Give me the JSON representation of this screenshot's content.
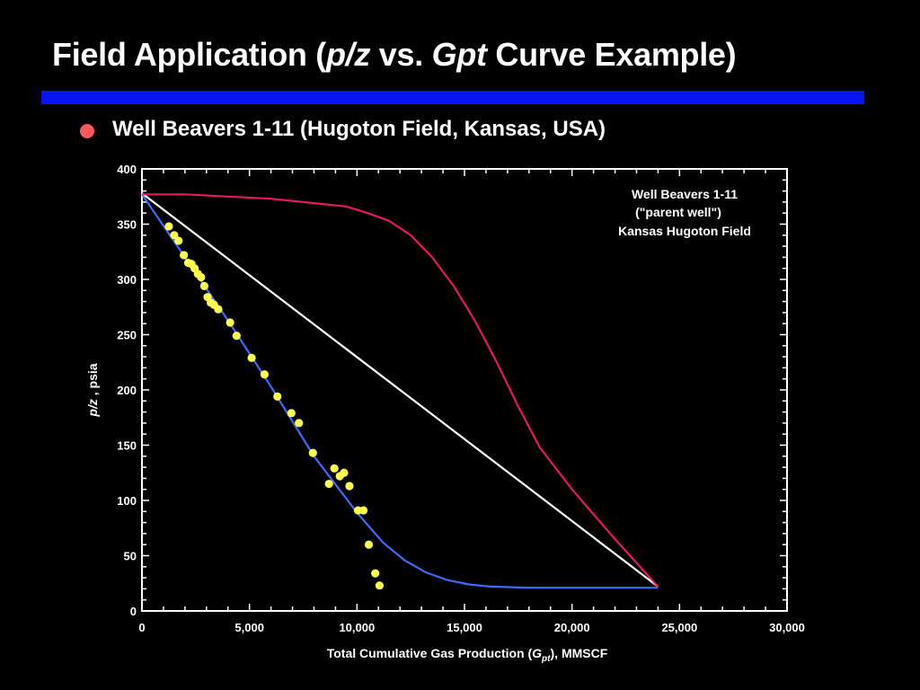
{
  "slide": {
    "title_part1": "Field Application (",
    "title_var1": "p/z",
    "title_part2": " vs. ",
    "title_var2": "Gpt",
    "title_part3": " Curve Example)",
    "bullet": "Well Beavers 1-11 (Hugoton Field, Kansas, USA)"
  },
  "colors": {
    "background": "#000000",
    "title_bar": "#0a14f0",
    "bullet": "#ff5a5a",
    "data_points": "#ffff4d",
    "fit_line": "#3d6bff",
    "straight_line": "#ffffff",
    "curve": "#e8195a"
  },
  "chart_data": {
    "type": "scatter",
    "annotation": [
      "Well Beavers 1-11",
      "(\"parent well\")",
      "Kansas Hugoton Field"
    ],
    "xlabel_pre": "Total Cumulative Gas Production (",
    "xlabel_var": "G",
    "xlabel_sub": "pt",
    "xlabel_post": "), MMSCF",
    "ylabel_var": "p/z",
    "ylabel_post": " , psia",
    "xlim": [
      0,
      30000
    ],
    "ylim": [
      0,
      400
    ],
    "x_ticks": [
      0,
      5000,
      10000,
      15000,
      20000,
      25000,
      30000
    ],
    "x_tick_labels": [
      "0",
      "5,000",
      "10,000",
      "15,000",
      "20,000",
      "25,000",
      "30,000"
    ],
    "y_ticks": [
      0,
      50,
      100,
      150,
      200,
      250,
      300,
      350,
      400
    ],
    "y_tick_labels": [
      "0",
      "50",
      "100",
      "150",
      "200",
      "250",
      "300",
      "350",
      "400"
    ],
    "grid": false,
    "series": [
      {
        "kind": "scatter",
        "color": "#ffff4d",
        "points": [
          [
            1250,
            348
          ],
          [
            1500,
            340
          ],
          [
            1700,
            335
          ],
          [
            1950,
            322
          ],
          [
            2150,
            315
          ],
          [
            2300,
            314
          ],
          [
            2450,
            310
          ],
          [
            2600,
            305
          ],
          [
            2750,
            302
          ],
          [
            2900,
            294
          ],
          [
            3050,
            284
          ],
          [
            3200,
            279
          ],
          [
            3350,
            277
          ],
          [
            3550,
            273
          ],
          [
            4100,
            261
          ],
          [
            4400,
            249
          ],
          [
            5100,
            229
          ],
          [
            5700,
            214
          ],
          [
            6300,
            194
          ],
          [
            6950,
            179
          ],
          [
            7300,
            170
          ],
          [
            7950,
            143
          ],
          [
            8700,
            115
          ],
          [
            8950,
            129
          ],
          [
            9200,
            122
          ],
          [
            9400,
            125
          ],
          [
            9650,
            113
          ],
          [
            10050,
            91
          ],
          [
            10300,
            91
          ],
          [
            10550,
            60
          ],
          [
            10850,
            34
          ],
          [
            11050,
            23
          ]
        ]
      },
      {
        "kind": "line",
        "color": "#3d6bff",
        "points": [
          [
            0,
            377
          ],
          [
            2000,
            320
          ],
          [
            4000,
            263
          ],
          [
            6000,
            203
          ],
          [
            8000,
            140
          ],
          [
            10000,
            89
          ],
          [
            11200,
            62
          ],
          [
            12200,
            46
          ],
          [
            13200,
            35
          ],
          [
            14200,
            28
          ],
          [
            15200,
            24
          ],
          [
            16200,
            22
          ],
          [
            18000,
            21
          ],
          [
            24000,
            21
          ]
        ]
      },
      {
        "kind": "line",
        "color": "#ffffff",
        "points": [
          [
            0,
            378
          ],
          [
            24000,
            22
          ]
        ]
      },
      {
        "kind": "line",
        "color": "#e8195a",
        "points": [
          [
            0,
            377
          ],
          [
            2000,
            377
          ],
          [
            4000,
            375
          ],
          [
            6000,
            373
          ],
          [
            8000,
            369
          ],
          [
            9500,
            366
          ],
          [
            10500,
            360
          ],
          [
            11500,
            353
          ],
          [
            12500,
            340
          ],
          [
            13500,
            320
          ],
          [
            14500,
            294
          ],
          [
            15500,
            262
          ],
          [
            16500,
            225
          ],
          [
            17500,
            185
          ],
          [
            18500,
            148
          ],
          [
            20000,
            110
          ],
          [
            22000,
            65
          ],
          [
            24000,
            22
          ]
        ]
      }
    ]
  }
}
